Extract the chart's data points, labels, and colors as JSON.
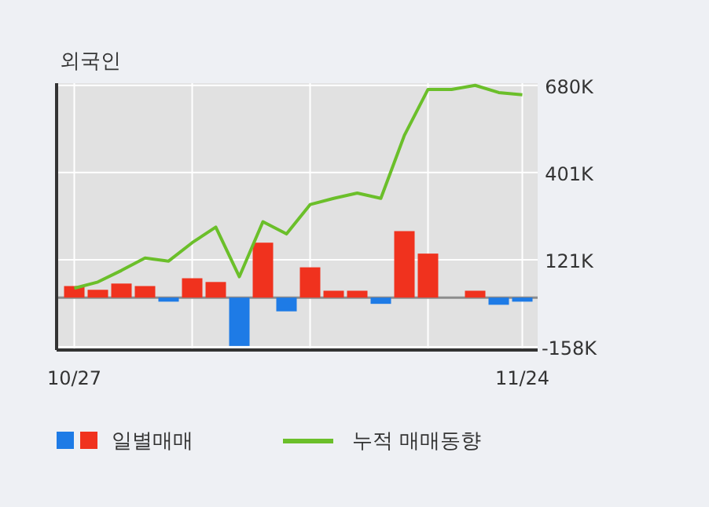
{
  "chart_data": {
    "type": "bar",
    "title": "외국인",
    "categories": [
      "10/27",
      null,
      null,
      null,
      null,
      null,
      null,
      null,
      null,
      null,
      null,
      null,
      null,
      null,
      null,
      null,
      null,
      null,
      null,
      "11/24"
    ],
    "series": [
      {
        "name": "일별매매",
        "colors": [
          "#f0321e",
          "#f0321e",
          "#f0321e",
          "#f0321e",
          "#1e7be6",
          "#f0321e",
          "#f0321e",
          "#1e7be6",
          "#f0321e",
          "#1e7be6",
          "#f0321e",
          "#f0321e",
          "#f0321e",
          "#1e7be6",
          "#f0321e",
          "#f0321e",
          "#f0321e",
          "#f0321e",
          "#1e7be6",
          "#1e7be6"
        ],
        "values": [
          37,
          25,
          45,
          37,
          -13,
          62,
          50,
          -155,
          176,
          -44,
          97,
          22,
          22,
          -20,
          213,
          141,
          0,
          22,
          -23,
          -13
        ]
      },
      {
        "type": "line",
        "name": "누적 매매동향",
        "color": "#6bbf2a",
        "values": [
          30,
          50,
          87,
          127,
          117,
          176,
          226,
          67,
          243,
          204,
          298,
          318,
          335,
          318,
          520,
          667,
          667,
          680,
          657,
          650
        ]
      }
    ],
    "ylim": [
      -168,
      687
    ],
    "yticks": [
      {
        "value": 680,
        "label": "680K"
      },
      {
        "value": 401,
        "label": "401K"
      },
      {
        "value": 121,
        "label": "121K"
      },
      {
        "value": -158,
        "label": "-158K"
      }
    ],
    "grid": true,
    "legend": "bottom"
  }
}
